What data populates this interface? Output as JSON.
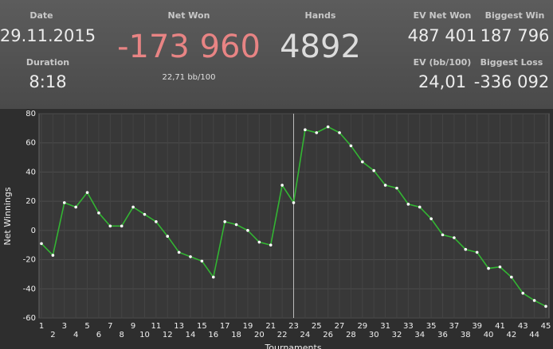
{
  "stats": {
    "date_label": "Date",
    "date": "29.11.2015",
    "duration_label": "Duration",
    "duration": "8:18",
    "net_won_label": "Net Won",
    "net_won": "-173 960",
    "net_won_rate": "22,71 bb/100",
    "hands_label": "Hands",
    "hands": "4892",
    "ev_net_won_label": "EV Net Won",
    "ev_net_won": "487 401",
    "biggest_win_label": "Biggest Win",
    "biggest_win": "187 796",
    "ev_rate_label": "EV (bb/100)",
    "ev_rate": "24,01",
    "biggest_loss_label": "Biggest Loss",
    "biggest_loss": "-336 092"
  },
  "chart_data": {
    "type": "line",
    "x_label": "Tournaments",
    "y_label": "Net Winnings",
    "x": [
      1,
      2,
      3,
      4,
      5,
      6,
      7,
      8,
      9,
      10,
      11,
      12,
      13,
      14,
      15,
      16,
      17,
      18,
      19,
      20,
      21,
      22,
      23,
      24,
      25,
      26,
      27,
      28,
      29,
      30,
      31,
      32,
      33,
      34,
      35,
      36,
      37,
      38,
      39,
      40,
      41,
      42,
      43,
      44,
      45
    ],
    "series": [
      {
        "name": "Net Winnings",
        "color": "#33b533",
        "values": [
          -9,
          -17,
          19,
          16,
          26,
          12,
          3,
          3,
          16,
          11,
          6,
          -4,
          -15,
          -18,
          -21,
          -32,
          6,
          4,
          0,
          -8,
          -10,
          31,
          19,
          69,
          67,
          71,
          67,
          58,
          47,
          41,
          31,
          29,
          18,
          16,
          8,
          -3,
          -5,
          -13,
          -15,
          -26,
          -25,
          -32,
          -43,
          -48,
          -52
        ]
      }
    ],
    "xlim": [
      1,
      45
    ],
    "xticks": [
      1,
      2,
      3,
      4,
      5,
      6,
      7,
      8,
      9,
      10,
      11,
      12,
      13,
      14,
      15,
      16,
      17,
      18,
      19,
      20,
      21,
      22,
      23,
      24,
      25,
      26,
      27,
      28,
      29,
      30,
      31,
      32,
      33,
      34,
      35,
      36,
      37,
      38,
      39,
      40,
      41,
      42,
      43,
      44,
      45
    ],
    "ylim": [
      -60,
      80
    ],
    "yticks": [
      -60,
      -40,
      -20,
      0,
      20,
      40,
      60,
      80
    ],
    "grid": true,
    "marker_x": 23
  }
}
